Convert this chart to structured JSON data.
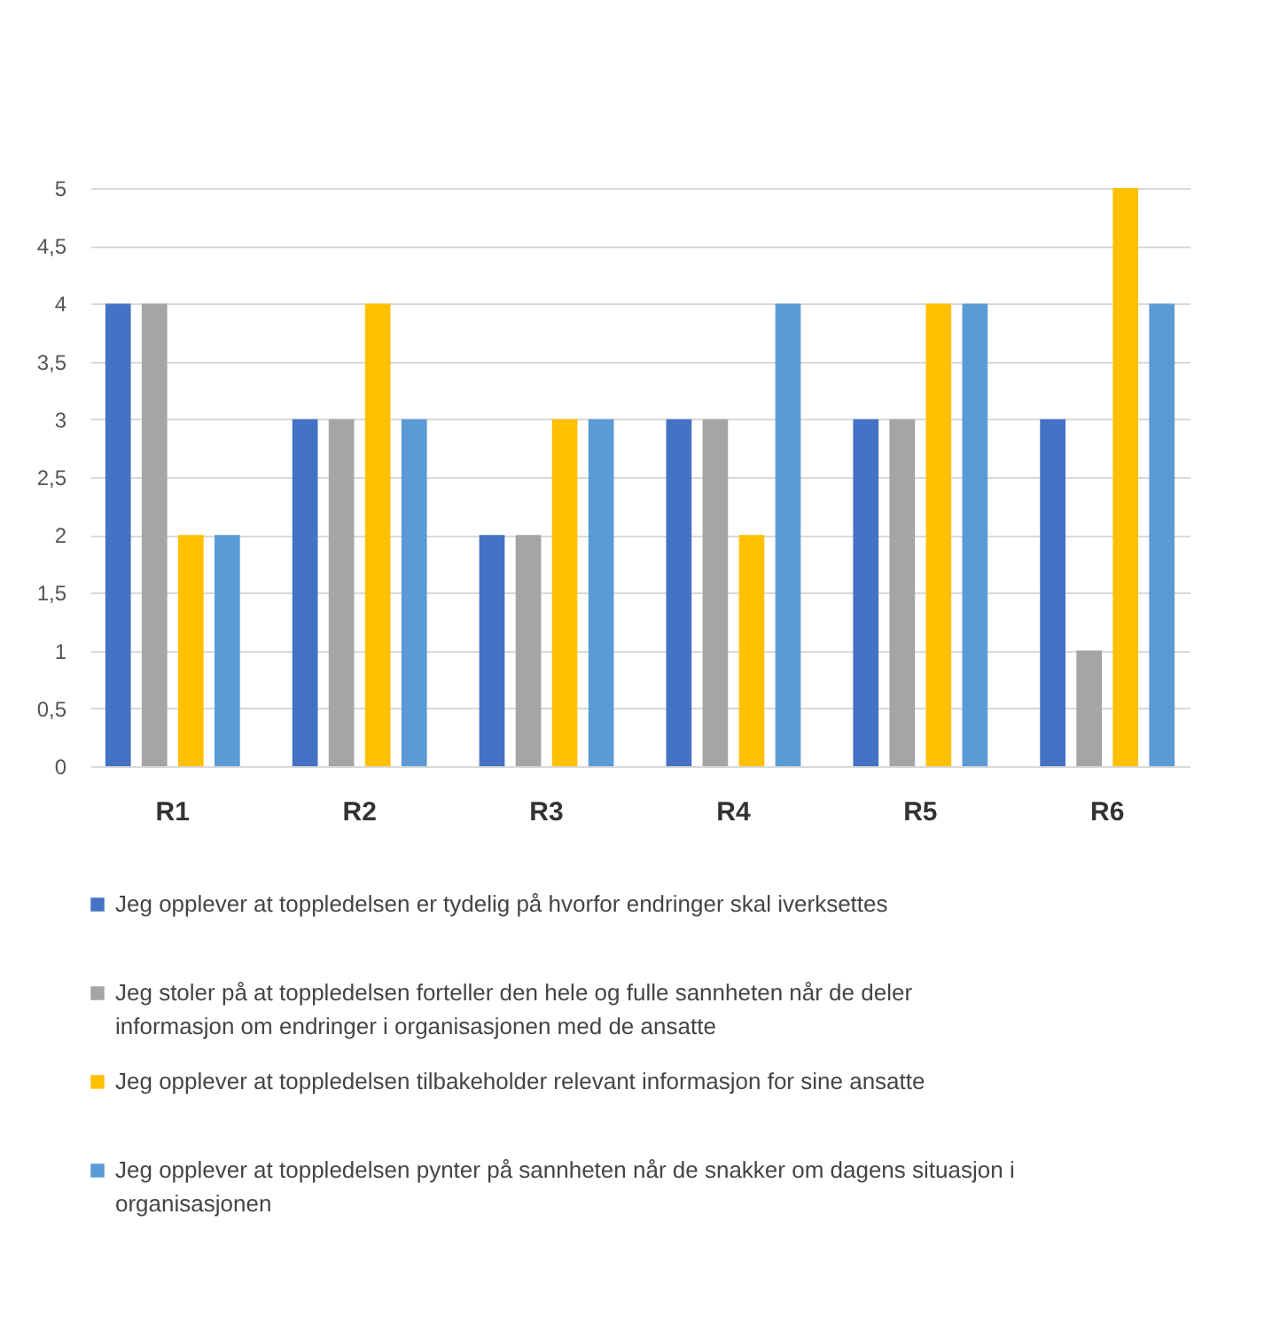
{
  "chart_data": {
    "type": "bar",
    "categories": [
      "R1",
      "R2",
      "R3",
      "R4",
      "R5",
      "R6"
    ],
    "series": [
      {
        "name": "Jeg opplever at toppledelsen er tydelig på hvorfor endringer skal iverksettes",
        "color": "#4472c4",
        "values": [
          4,
          3,
          2,
          3,
          3,
          3
        ]
      },
      {
        "name": "Jeg stoler på at toppledelsen forteller den hele og fulle sannheten når de deler informasjon om endringer i organisasjonen med de ansatte",
        "color": "#a5a5a5",
        "values": [
          4,
          3,
          2,
          3,
          3,
          1
        ]
      },
      {
        "name": "Jeg opplever at toppledelsen tilbakeholder relevant informasjon for sine ansatte",
        "color": "#ffc000",
        "values": [
          2,
          4,
          3,
          2,
          4,
          5
        ]
      },
      {
        "name": "Jeg opplever at toppledelsen pynter på sannheten når de snakker om dagens situasjon i organisasjonen",
        "color": "#5b9bd5",
        "values": [
          2,
          3,
          3,
          4,
          4,
          4
        ]
      }
    ],
    "ylim": [
      0,
      5
    ],
    "yticks": [
      0,
      {
        "value": 0.5,
        "label": "0,5"
      },
      1,
      {
        "value": 1.5,
        "label": "1,5"
      },
      2,
      {
        "value": 2.5,
        "label": "2,5"
      },
      3,
      {
        "value": 3.5,
        "label": "3,5"
      },
      4,
      {
        "value": 4.5,
        "label": "4,5"
      },
      5
    ],
    "grid": "y",
    "legend": "bottom"
  }
}
